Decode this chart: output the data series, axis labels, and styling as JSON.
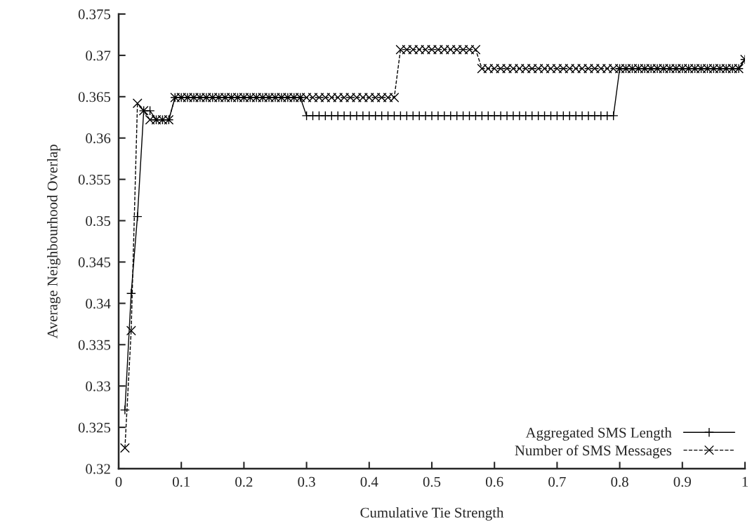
{
  "chart_data": {
    "type": "line",
    "xlabel": "Cumulative Tie Strength",
    "ylabel": "Average Neighbourhood Overlap",
    "x": [
      0.01,
      0.02,
      0.03,
      0.04,
      0.05,
      0.06,
      0.07,
      0.08,
      0.09,
      0.1,
      0.11,
      0.12,
      0.13,
      0.14,
      0.15,
      0.16,
      0.17,
      0.18,
      0.19,
      0.2,
      0.21,
      0.22,
      0.23,
      0.24,
      0.25,
      0.26,
      0.27,
      0.28,
      0.29,
      0.3,
      0.31,
      0.32,
      0.33,
      0.34,
      0.35,
      0.36,
      0.37,
      0.38,
      0.39,
      0.4,
      0.41,
      0.42,
      0.43,
      0.44,
      0.45,
      0.46,
      0.47,
      0.48,
      0.49,
      0.5,
      0.51,
      0.52,
      0.53,
      0.54,
      0.55,
      0.56,
      0.57,
      0.58,
      0.59,
      0.6,
      0.61,
      0.62,
      0.63,
      0.64,
      0.65,
      0.66,
      0.67,
      0.68,
      0.69,
      0.7,
      0.71,
      0.72,
      0.73,
      0.74,
      0.75,
      0.76,
      0.77,
      0.78,
      0.79,
      0.8,
      0.81,
      0.82,
      0.83,
      0.84,
      0.85,
      0.86,
      0.87,
      0.88,
      0.89,
      0.9,
      0.91,
      0.92,
      0.93,
      0.94,
      0.95,
      0.96,
      0.97,
      0.98,
      0.99,
      1.0
    ],
    "series": [
      {
        "name": "Aggregated SMS Length",
        "color": "#000000",
        "marker": "plus",
        "line_style": "solid",
        "values": [
          0.3271,
          0.3412,
          0.3505,
          0.3633,
          0.3633,
          0.3622,
          0.3622,
          0.3622,
          0.3649,
          0.3649,
          0.3649,
          0.3649,
          0.3649,
          0.3649,
          0.3649,
          0.3649,
          0.3649,
          0.3649,
          0.3649,
          0.3649,
          0.3649,
          0.3649,
          0.3649,
          0.3649,
          0.3649,
          0.3649,
          0.3649,
          0.3649,
          0.3649,
          0.3627,
          0.3627,
          0.3627,
          0.3627,
          0.3627,
          0.3627,
          0.3627,
          0.3627,
          0.3627,
          0.3627,
          0.3627,
          0.3627,
          0.3627,
          0.3627,
          0.3627,
          0.3627,
          0.3627,
          0.3627,
          0.3627,
          0.3627,
          0.3627,
          0.3627,
          0.3627,
          0.3627,
          0.3627,
          0.3627,
          0.3627,
          0.3627,
          0.3627,
          0.3627,
          0.3627,
          0.3627,
          0.3627,
          0.3627,
          0.3627,
          0.3627,
          0.3627,
          0.3627,
          0.3627,
          0.3627,
          0.3627,
          0.3627,
          0.3627,
          0.3627,
          0.3627,
          0.3627,
          0.3627,
          0.3627,
          0.3627,
          0.3627,
          0.3684,
          0.3684,
          0.3684,
          0.3684,
          0.3684,
          0.3684,
          0.3684,
          0.3684,
          0.3684,
          0.3684,
          0.3684,
          0.3684,
          0.3684,
          0.3684,
          0.3684,
          0.3684,
          0.3684,
          0.3684,
          0.3684,
          0.3684,
          0.3695
        ]
      },
      {
        "name": "Number of SMS Messages",
        "color": "#000000",
        "marker": "cross",
        "line_style": "dashed",
        "values": [
          0.3225,
          0.3367,
          0.3642,
          0.3633,
          0.3622,
          0.3622,
          0.3622,
          0.3622,
          0.3649,
          0.3649,
          0.3649,
          0.3649,
          0.3649,
          0.3649,
          0.3649,
          0.3649,
          0.3649,
          0.3649,
          0.3649,
          0.3649,
          0.3649,
          0.3649,
          0.3649,
          0.3649,
          0.3649,
          0.3649,
          0.3649,
          0.3649,
          0.3649,
          0.3649,
          0.3649,
          0.3649,
          0.3649,
          0.3649,
          0.3649,
          0.3649,
          0.3649,
          0.3649,
          0.3649,
          0.3649,
          0.3649,
          0.3649,
          0.3649,
          0.3649,
          0.3707,
          0.3707,
          0.3707,
          0.3707,
          0.3707,
          0.3707,
          0.3707,
          0.3707,
          0.3707,
          0.3707,
          0.3707,
          0.3707,
          0.3707,
          0.3684,
          0.3684,
          0.3684,
          0.3684,
          0.3684,
          0.3684,
          0.3684,
          0.3684,
          0.3684,
          0.3684,
          0.3684,
          0.3684,
          0.3684,
          0.3684,
          0.3684,
          0.3684,
          0.3684,
          0.3684,
          0.3684,
          0.3684,
          0.3684,
          0.3684,
          0.3684,
          0.3684,
          0.3684,
          0.3684,
          0.3684,
          0.3684,
          0.3684,
          0.3684,
          0.3684,
          0.3684,
          0.3684,
          0.3684,
          0.3684,
          0.3684,
          0.3684,
          0.3684,
          0.3684,
          0.3684,
          0.3684,
          0.3684,
          0.3695
        ]
      }
    ],
    "xlim": [
      0,
      1
    ],
    "xticks": [
      0,
      0.1,
      0.2,
      0.3,
      0.4,
      0.5,
      0.6,
      0.7,
      0.8,
      0.9,
      1
    ],
    "ylim": [
      0.32,
      0.375
    ],
    "yticks": [
      0.32,
      0.325,
      0.33,
      0.335,
      0.34,
      0.345,
      0.35,
      0.355,
      0.36,
      0.365,
      0.37,
      0.375
    ],
    "legend": "bottom right",
    "grid": false
  }
}
